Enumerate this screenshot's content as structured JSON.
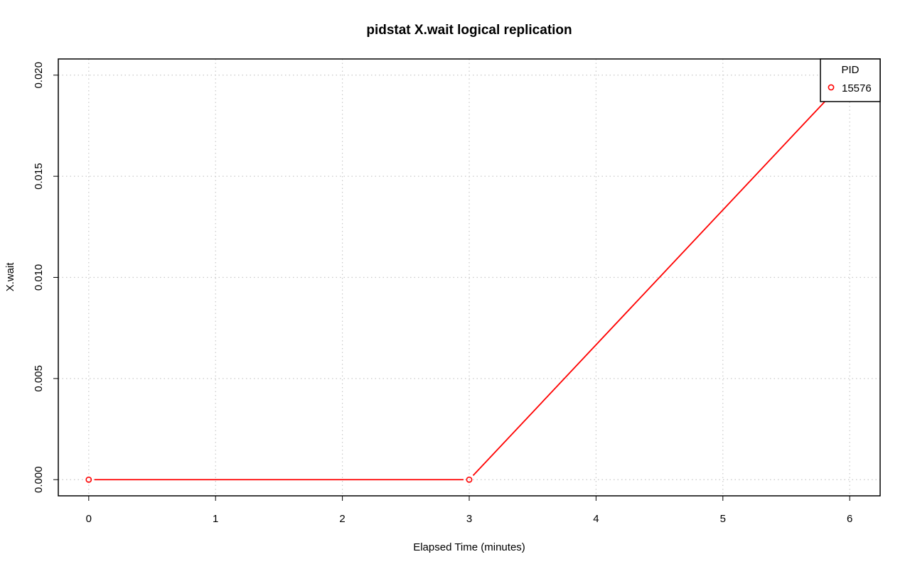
{
  "chart_data": {
    "type": "line",
    "title": "pidstat X.wait logical replication",
    "xlabel": "Elapsed Time (minutes)",
    "ylabel": "X.wait",
    "xlim": [
      -0.24,
      6.24
    ],
    "ylim": [
      -0.0008,
      0.0208
    ],
    "x_ticks": [
      0,
      1,
      2,
      3,
      4,
      5,
      6
    ],
    "y_ticks": [
      0.0,
      0.005,
      0.01,
      0.015,
      0.02
    ],
    "x_tick_labels": [
      "0",
      "1",
      "2",
      "3",
      "4",
      "5",
      "6"
    ],
    "y_tick_labels": [
      "0.000",
      "0.005",
      "0.010",
      "0.015",
      "0.020"
    ],
    "grid": true,
    "legend": {
      "title": "PID",
      "placement": "top-right",
      "entries": [
        "15576"
      ]
    },
    "series": [
      {
        "name": "15576",
        "color": "#ff0000",
        "x": [
          0,
          3,
          6
        ],
        "y": [
          0.0,
          0.0,
          0.02
        ]
      }
    ]
  }
}
